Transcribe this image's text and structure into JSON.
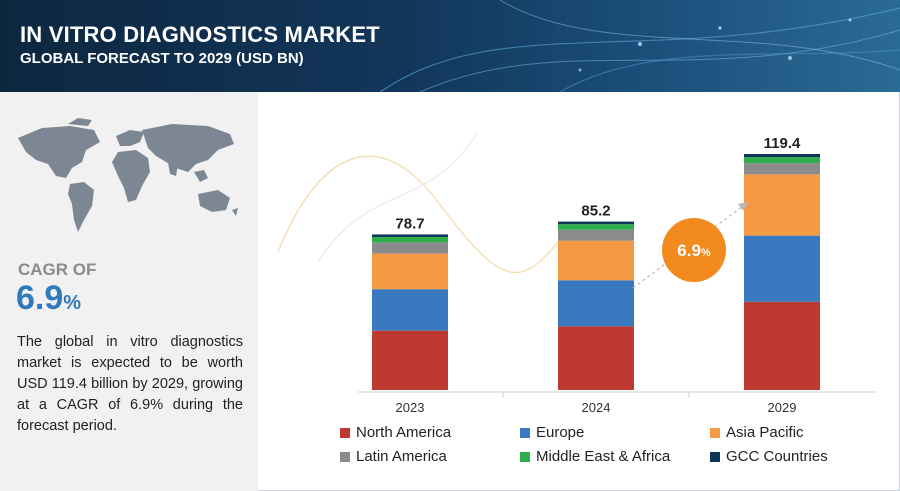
{
  "header": {
    "title": "IN VITRO DIAGNOSTICS MARKET",
    "subtitle": "GLOBAL FORECAST TO 2029 (USD BN)"
  },
  "sidebar": {
    "cagr_label": "CAGR OF",
    "cagr_number": "6.9",
    "cagr_unit": "%",
    "description": "The global in vitro diagnostics market is expected to be worth USD 119.4 billion by 2029, growing at a CAGR of 6.9% during the forecast period."
  },
  "growth_badge": {
    "number": "6.9",
    "unit": "%"
  },
  "colors": {
    "north_america": "#be3a30",
    "europe": "#3a78bf",
    "asia_pacific": "#f59a44",
    "latin_america": "#8b8b8b",
    "middle_east_africa": "#2cae4a",
    "gcc": "#0f3558",
    "accent": "#f28a1e"
  },
  "chart_data": {
    "type": "bar",
    "stacked": true,
    "categories": [
      "2023",
      "2024",
      "2029"
    ],
    "totals": [
      78.7,
      85.2,
      119.4
    ],
    "series": [
      {
        "name": "North America",
        "color": "#be3a30",
        "values": [
          30.0,
          32.2,
          44.6
        ]
      },
      {
        "name": "Europe",
        "color": "#3a78bf",
        "values": [
          21.0,
          23.3,
          33.5
        ]
      },
      {
        "name": "Asia Pacific",
        "color": "#f59a44",
        "values": [
          18.0,
          20.0,
          31.0
        ]
      },
      {
        "name": "Latin America",
        "color": "#8b8b8b",
        "values": [
          5.7,
          5.6,
          5.7
        ]
      },
      {
        "name": "Middle East & Africa",
        "color": "#2cae4a",
        "values": [
          2.7,
          2.8,
          3.0
        ]
      },
      {
        "name": "GCC Countries",
        "color": "#0f3558",
        "values": [
          1.3,
          1.3,
          1.6
        ]
      }
    ],
    "ylim": [
      0,
      119.4
    ],
    "legend_position": "bottom",
    "grid": false
  }
}
